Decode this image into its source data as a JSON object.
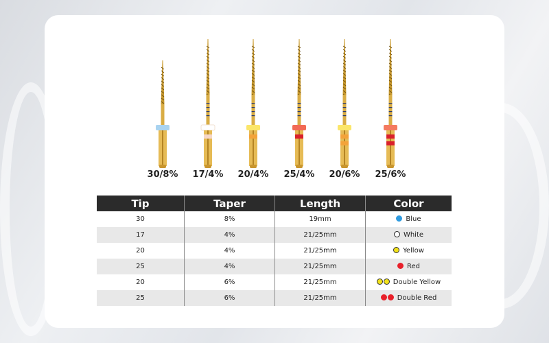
{
  "files": [
    {
      "label": "30/8%",
      "short": true,
      "ring": "#a9d3f0",
      "bands": []
    },
    {
      "label": "17/4%",
      "short": false,
      "ring": "#ffffff",
      "bands": [
        "#f6d7c8"
      ]
    },
    {
      "label": "20/4%",
      "short": false,
      "ring": "#fbe66a",
      "bands": [
        "#f3a33a"
      ]
    },
    {
      "label": "25/4%",
      "short": false,
      "ring": "#f26a55",
      "bands": [
        "#d9202b"
      ]
    },
    {
      "label": "20/6%",
      "short": false,
      "ring": "#fbe66a",
      "bands": [
        "#f3a33a",
        "#f3a33a"
      ]
    },
    {
      "label": "25/6%",
      "short": false,
      "ring": "#f47a60",
      "bands": [
        "#d9202b",
        "#d9202b"
      ]
    }
  ],
  "table": {
    "headers": [
      "Tip",
      "Taper",
      "Length",
      "Color"
    ],
    "rows": [
      {
        "tip": "30",
        "taper": "8%",
        "length": "19mm",
        "color": "Blue",
        "dots": [
          "#2f9be0"
        ]
      },
      {
        "tip": "17",
        "taper": "4%",
        "length": "21/25mm",
        "color": "White",
        "dots": [
          "#ffffff"
        ]
      },
      {
        "tip": "20",
        "taper": "4%",
        "length": "21/25mm",
        "color": "Yellow",
        "dots": [
          "#f2e21a"
        ]
      },
      {
        "tip": "25",
        "taper": "4%",
        "length": "21/25mm",
        "color": "Red",
        "dots": [
          "#e8202a"
        ]
      },
      {
        "tip": "20",
        "taper": "6%",
        "length": "21/25mm",
        "color": "Double Yellow",
        "dots": [
          "#f2e21a",
          "#f2e21a"
        ]
      },
      {
        "tip": "25",
        "taper": "6%",
        "length": "21/25mm",
        "color": "Double Red",
        "dots": [
          "#e8202a",
          "#e8202a"
        ]
      }
    ]
  }
}
